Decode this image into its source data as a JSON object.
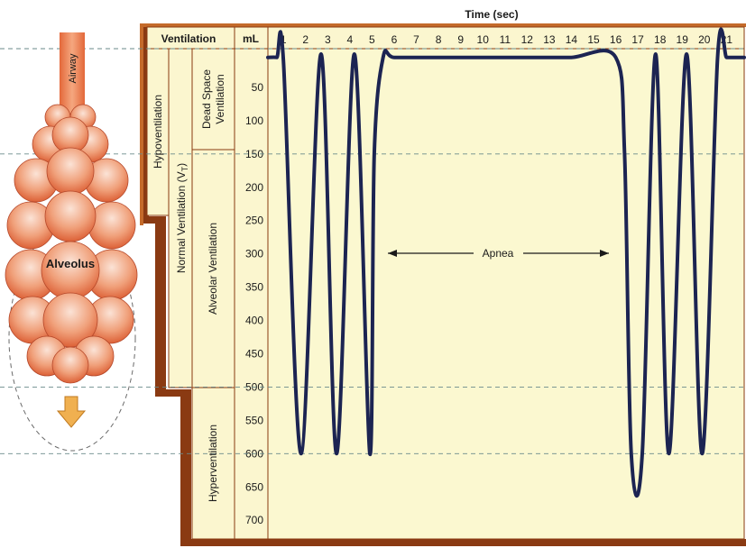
{
  "top_title": "Time (sec)",
  "header": {
    "ventilation": "Ventilation",
    "unit": "mL"
  },
  "time_ticks": [
    "1",
    "2",
    "3",
    "4",
    "5",
    "6",
    "7",
    "8",
    "9",
    "10",
    "11",
    "12",
    "13",
    "14",
    "15",
    "16",
    "17",
    "18",
    "19",
    "20",
    "21"
  ],
  "volume_ticks": [
    "50",
    "100",
    "150",
    "200",
    "250",
    "300",
    "350",
    "400",
    "450",
    "500",
    "550",
    "600",
    "650",
    "700"
  ],
  "left_labels": {
    "airway": "Airway",
    "alveolus": "Alveolus"
  },
  "bracket_labels": {
    "hypoventilation": "Hypoventilation",
    "normal_ventilation": "Normal Ventilation (V",
    "normal_sub": "T",
    "normal_close": ")",
    "dead_space_line1": "Dead Space",
    "dead_space_line2": "Ventilation",
    "alveolar_ventilation": "Alveolar Ventilation",
    "hyperventilation": "Hyperventilation"
  },
  "annotation": {
    "apnea": "Apnea"
  },
  "colors": {
    "plot_bg": "#fbf8d0",
    "panel_bg": "#fbf6cf",
    "frame_brown": "#8a3a12",
    "frame_edge": "#c46a2a",
    "trace": "#1c2452",
    "alveolus_light": "#f6c7b0",
    "alveolus_dark": "#e2673a",
    "arrow": "#f0b050"
  },
  "chart_data": {
    "type": "line",
    "title": "Time (sec)",
    "xlabel": "Time (sec)",
    "ylabel": "mL",
    "xlim": [
      0.3,
      21.8
    ],
    "ylim": [
      0,
      720
    ],
    "y_inverted": true,
    "reference_lines": [
      0,
      150,
      500,
      600
    ],
    "series": [
      {
        "x": [
          0.3,
          0.7,
          1.0,
          1.8,
          2.7,
          3.4,
          4.2,
          4.9,
          5.1,
          5.5,
          6,
          8,
          10,
          12,
          14,
          16,
          16.4,
          16.7,
          17.2,
          17.8,
          18.4,
          19.2,
          19.9,
          20.6,
          21.0,
          21.3,
          21.8
        ],
        "y": [
          5,
          5,
          10,
          600,
          0,
          600,
          0,
          600,
          150,
          5,
          5,
          5,
          5,
          5,
          5,
          5,
          150,
          600,
          600,
          0,
          600,
          0,
          600,
          5,
          5,
          5,
          5
        ]
      }
    ]
  }
}
